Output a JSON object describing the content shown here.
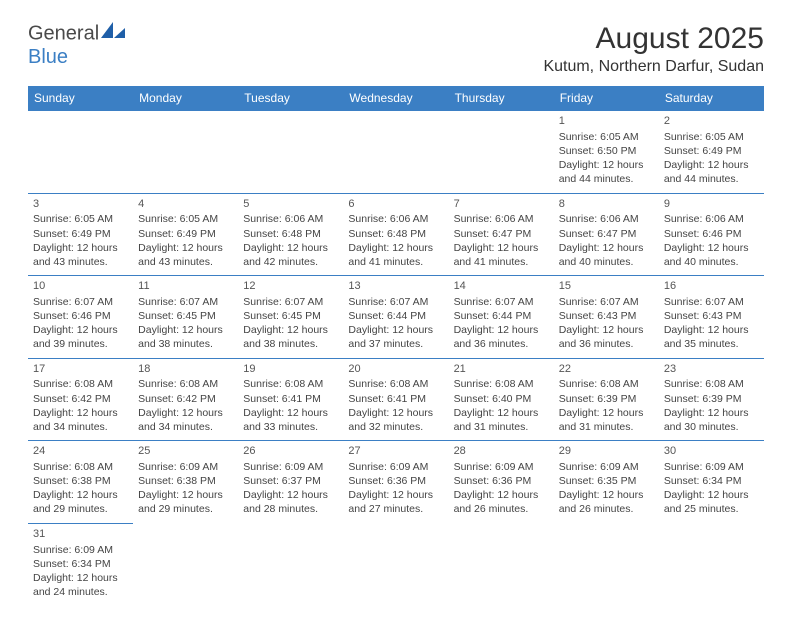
{
  "logo": {
    "word1": "General",
    "word2": "Blue"
  },
  "title": "August 2025",
  "location": "Kutum, Northern Darfur, Sudan",
  "headers": [
    "Sunday",
    "Monday",
    "Tuesday",
    "Wednesday",
    "Thursday",
    "Friday",
    "Saturday"
  ],
  "header_bg": "#3b7fc4",
  "header_fg": "#ffffff",
  "border_color": "#3b7fc4",
  "cell_fontsize": 10.5,
  "weeks": [
    [
      null,
      null,
      null,
      null,
      null,
      {
        "n": "1",
        "sr": "Sunrise: 6:05 AM",
        "ss": "Sunset: 6:50 PM",
        "dl": "Daylight: 12 hours and 44 minutes."
      },
      {
        "n": "2",
        "sr": "Sunrise: 6:05 AM",
        "ss": "Sunset: 6:49 PM",
        "dl": "Daylight: 12 hours and 44 minutes."
      }
    ],
    [
      {
        "n": "3",
        "sr": "Sunrise: 6:05 AM",
        "ss": "Sunset: 6:49 PM",
        "dl": "Daylight: 12 hours and 43 minutes."
      },
      {
        "n": "4",
        "sr": "Sunrise: 6:05 AM",
        "ss": "Sunset: 6:49 PM",
        "dl": "Daylight: 12 hours and 43 minutes."
      },
      {
        "n": "5",
        "sr": "Sunrise: 6:06 AM",
        "ss": "Sunset: 6:48 PM",
        "dl": "Daylight: 12 hours and 42 minutes."
      },
      {
        "n": "6",
        "sr": "Sunrise: 6:06 AM",
        "ss": "Sunset: 6:48 PM",
        "dl": "Daylight: 12 hours and 41 minutes."
      },
      {
        "n": "7",
        "sr": "Sunrise: 6:06 AM",
        "ss": "Sunset: 6:47 PM",
        "dl": "Daylight: 12 hours and 41 minutes."
      },
      {
        "n": "8",
        "sr": "Sunrise: 6:06 AM",
        "ss": "Sunset: 6:47 PM",
        "dl": "Daylight: 12 hours and 40 minutes."
      },
      {
        "n": "9",
        "sr": "Sunrise: 6:06 AM",
        "ss": "Sunset: 6:46 PM",
        "dl": "Daylight: 12 hours and 40 minutes."
      }
    ],
    [
      {
        "n": "10",
        "sr": "Sunrise: 6:07 AM",
        "ss": "Sunset: 6:46 PM",
        "dl": "Daylight: 12 hours and 39 minutes."
      },
      {
        "n": "11",
        "sr": "Sunrise: 6:07 AM",
        "ss": "Sunset: 6:45 PM",
        "dl": "Daylight: 12 hours and 38 minutes."
      },
      {
        "n": "12",
        "sr": "Sunrise: 6:07 AM",
        "ss": "Sunset: 6:45 PM",
        "dl": "Daylight: 12 hours and 38 minutes."
      },
      {
        "n": "13",
        "sr": "Sunrise: 6:07 AM",
        "ss": "Sunset: 6:44 PM",
        "dl": "Daylight: 12 hours and 37 minutes."
      },
      {
        "n": "14",
        "sr": "Sunrise: 6:07 AM",
        "ss": "Sunset: 6:44 PM",
        "dl": "Daylight: 12 hours and 36 minutes."
      },
      {
        "n": "15",
        "sr": "Sunrise: 6:07 AM",
        "ss": "Sunset: 6:43 PM",
        "dl": "Daylight: 12 hours and 36 minutes."
      },
      {
        "n": "16",
        "sr": "Sunrise: 6:07 AM",
        "ss": "Sunset: 6:43 PM",
        "dl": "Daylight: 12 hours and 35 minutes."
      }
    ],
    [
      {
        "n": "17",
        "sr": "Sunrise: 6:08 AM",
        "ss": "Sunset: 6:42 PM",
        "dl": "Daylight: 12 hours and 34 minutes."
      },
      {
        "n": "18",
        "sr": "Sunrise: 6:08 AM",
        "ss": "Sunset: 6:42 PM",
        "dl": "Daylight: 12 hours and 34 minutes."
      },
      {
        "n": "19",
        "sr": "Sunrise: 6:08 AM",
        "ss": "Sunset: 6:41 PM",
        "dl": "Daylight: 12 hours and 33 minutes."
      },
      {
        "n": "20",
        "sr": "Sunrise: 6:08 AM",
        "ss": "Sunset: 6:41 PM",
        "dl": "Daylight: 12 hours and 32 minutes."
      },
      {
        "n": "21",
        "sr": "Sunrise: 6:08 AM",
        "ss": "Sunset: 6:40 PM",
        "dl": "Daylight: 12 hours and 31 minutes."
      },
      {
        "n": "22",
        "sr": "Sunrise: 6:08 AM",
        "ss": "Sunset: 6:39 PM",
        "dl": "Daylight: 12 hours and 31 minutes."
      },
      {
        "n": "23",
        "sr": "Sunrise: 6:08 AM",
        "ss": "Sunset: 6:39 PM",
        "dl": "Daylight: 12 hours and 30 minutes."
      }
    ],
    [
      {
        "n": "24",
        "sr": "Sunrise: 6:08 AM",
        "ss": "Sunset: 6:38 PM",
        "dl": "Daylight: 12 hours and 29 minutes."
      },
      {
        "n": "25",
        "sr": "Sunrise: 6:09 AM",
        "ss": "Sunset: 6:38 PM",
        "dl": "Daylight: 12 hours and 29 minutes."
      },
      {
        "n": "26",
        "sr": "Sunrise: 6:09 AM",
        "ss": "Sunset: 6:37 PM",
        "dl": "Daylight: 12 hours and 28 minutes."
      },
      {
        "n": "27",
        "sr": "Sunrise: 6:09 AM",
        "ss": "Sunset: 6:36 PM",
        "dl": "Daylight: 12 hours and 27 minutes."
      },
      {
        "n": "28",
        "sr": "Sunrise: 6:09 AM",
        "ss": "Sunset: 6:36 PM",
        "dl": "Daylight: 12 hours and 26 minutes."
      },
      {
        "n": "29",
        "sr": "Sunrise: 6:09 AM",
        "ss": "Sunset: 6:35 PM",
        "dl": "Daylight: 12 hours and 26 minutes."
      },
      {
        "n": "30",
        "sr": "Sunrise: 6:09 AM",
        "ss": "Sunset: 6:34 PM",
        "dl": "Daylight: 12 hours and 25 minutes."
      }
    ],
    [
      {
        "n": "31",
        "sr": "Sunrise: 6:09 AM",
        "ss": "Sunset: 6:34 PM",
        "dl": "Daylight: 12 hours and 24 minutes."
      },
      null,
      null,
      null,
      null,
      null,
      null
    ]
  ]
}
